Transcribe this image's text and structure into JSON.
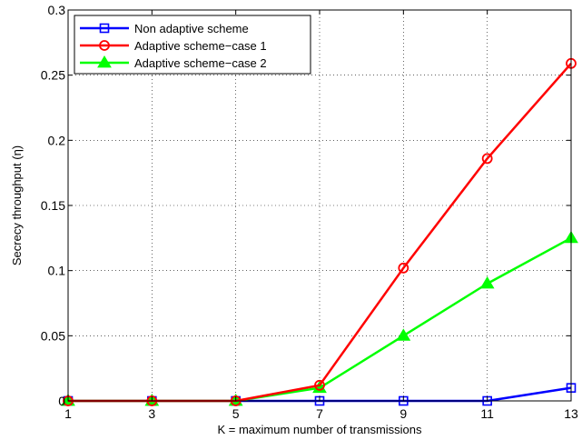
{
  "chart_data": {
    "type": "line",
    "xlabel": "K = maximum number of transmissions",
    "ylabel": "Secrecy throughput (η)",
    "xlim": [
      1,
      13
    ],
    "ylim": [
      0,
      0.3
    ],
    "x_ticks": [
      "1",
      "3",
      "5",
      "7",
      "9",
      "11",
      "13"
    ],
    "y_ticks": [
      "0",
      "0.05",
      "0.1",
      "0.15",
      "0.2",
      "0.25",
      "0.3"
    ],
    "grid": true,
    "legend_position": "top-left",
    "x": [
      1,
      3,
      5,
      7,
      9,
      11,
      13
    ],
    "series": [
      {
        "name": "Non adaptive scheme",
        "color": "#0000ff",
        "marker": "square",
        "values": [
          0,
          0,
          0,
          0,
          0,
          0,
          0.01
        ]
      },
      {
        "name": "Adaptive scheme−case 1",
        "color": "#ff0000",
        "marker": "circle",
        "values": [
          0,
          0,
          0,
          0.012,
          0.102,
          0.186,
          0.259
        ]
      },
      {
        "name": "Adaptive scheme−case 2",
        "color": "#00ff00",
        "marker": "triangle",
        "values": [
          0,
          0,
          0,
          0.01,
          0.05,
          0.09,
          0.125
        ]
      }
    ]
  }
}
